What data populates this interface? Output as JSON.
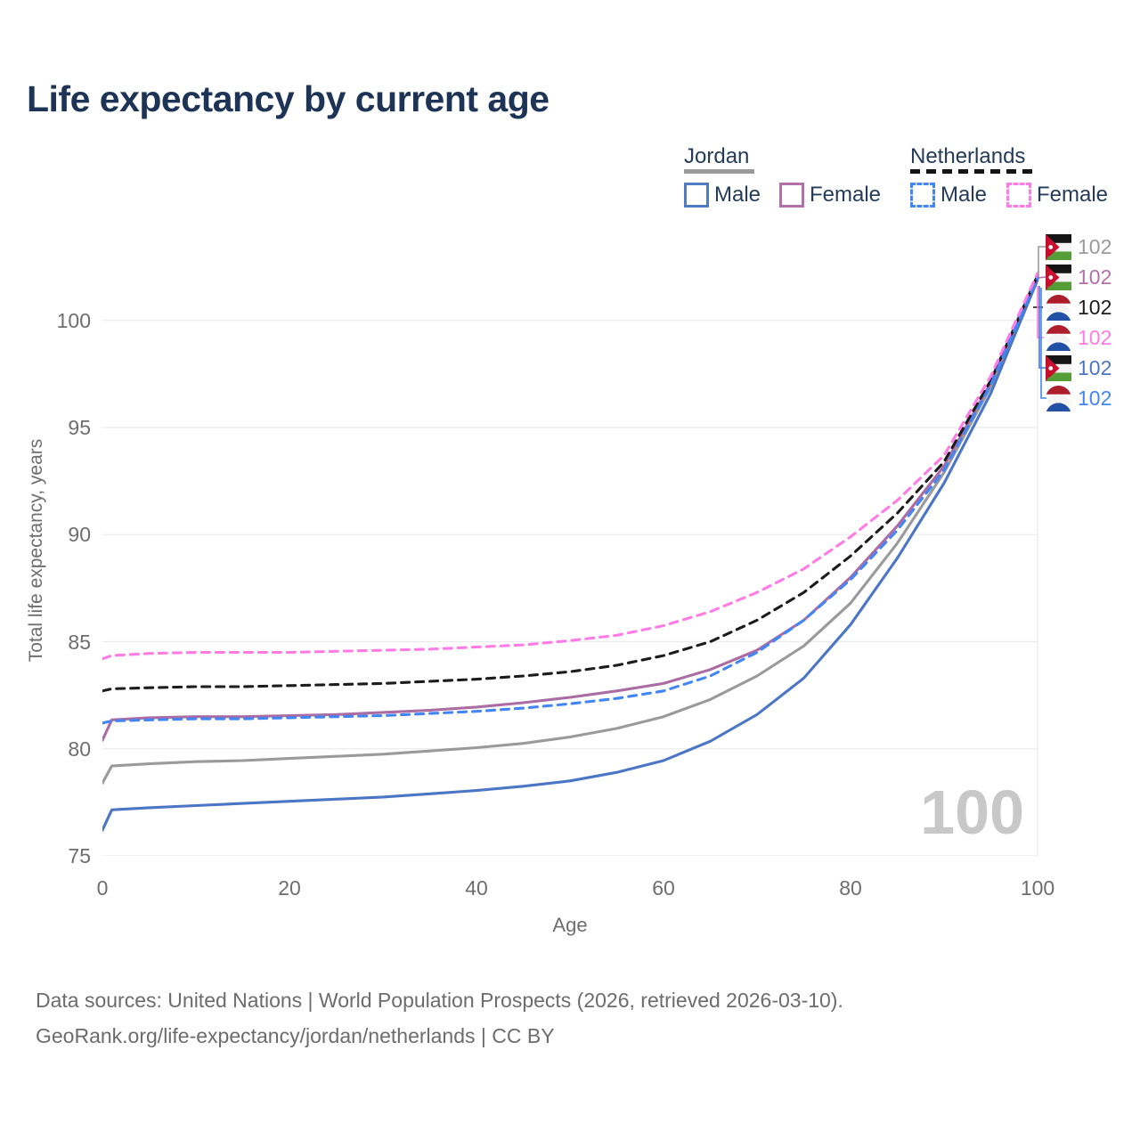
{
  "title": "Life expectancy by current age",
  "legend": {
    "groups": [
      {
        "label": "Jordan",
        "line_style": "solid",
        "underline_color": "#9a9a9a",
        "items": [
          {
            "label": "Male",
            "color": "#4f7ac4",
            "dashed": false
          },
          {
            "label": "Female",
            "color": "#b36fab",
            "dashed": false
          }
        ]
      },
      {
        "label": "Netherlands",
        "line_style": "dashed",
        "underline_color": "#141414",
        "items": [
          {
            "label": "Male",
            "color": "#4285f4",
            "dashed": true
          },
          {
            "label": "Female",
            "color": "#ff7be5",
            "dashed": true
          }
        ]
      }
    ]
  },
  "axes": {
    "x_label": "Age",
    "y_label": "Total life expectancy, years"
  },
  "watermark_age": "100",
  "end_labels": [
    {
      "series": "Jordan — total",
      "flag": "jordan",
      "value": "102",
      "color": "#9a9a9a"
    },
    {
      "series": "Jordan — female",
      "flag": "jordan",
      "value": "102",
      "color": "#b36fab"
    },
    {
      "series": "Netherlands — total",
      "flag": "netherlands",
      "value": "102",
      "color": "#1c1c1c"
    },
    {
      "series": "Netherlands — female",
      "flag": "netherlands",
      "value": "102",
      "color": "#ff7be5"
    },
    {
      "series": "Jordan — male",
      "flag": "jordan",
      "value": "102",
      "color": "#4b76c5"
    },
    {
      "series": "Netherlands — male",
      "flag": "netherlands",
      "value": "102",
      "color": "#4285f4"
    }
  ],
  "footer": {
    "line1": "Data sources: United Nations | World Population Prospects (2026, retrieved 2026-03-10).",
    "line2": "GeoRank.org/life-expectancy/jordan/netherlands | CC BY"
  },
  "chart_data": {
    "type": "line",
    "title": "Life expectancy by current age",
    "xlabel": "Age",
    "ylabel": "Total life expectancy, years",
    "xlim": [
      0,
      100
    ],
    "ylim": [
      75,
      102.5
    ],
    "xticks": [
      0,
      20,
      40,
      60,
      80,
      100
    ],
    "yticks": [
      75,
      80,
      85,
      90,
      95,
      100
    ],
    "grid": "horizontal",
    "legend_position": "top-right",
    "x": [
      0,
      1,
      5,
      10,
      15,
      20,
      25,
      30,
      35,
      40,
      45,
      50,
      55,
      60,
      65,
      70,
      75,
      80,
      85,
      90,
      95,
      100
    ],
    "series": [
      {
        "name": "Jordan total",
        "country": "Jordan",
        "sex": "both",
        "color": "#9a9a9a",
        "dashed": false,
        "values": [
          78.4,
          79.2,
          79.3,
          79.4,
          79.45,
          79.55,
          79.65,
          79.75,
          79.9,
          80.05,
          80.25,
          80.55,
          80.95,
          81.5,
          82.3,
          83.4,
          84.8,
          86.8,
          89.6,
          92.9,
          96.9,
          102.0
        ]
      },
      {
        "name": "Jordan male",
        "country": "Jordan",
        "sex": "male",
        "color": "#4b76c5",
        "dashed": false,
        "values": [
          76.2,
          77.15,
          77.25,
          77.35,
          77.45,
          77.55,
          77.65,
          77.75,
          77.9,
          78.05,
          78.25,
          78.5,
          78.9,
          79.45,
          80.35,
          81.6,
          83.3,
          85.8,
          88.9,
          92.4,
          96.6,
          101.9
        ]
      },
      {
        "name": "Jordan female",
        "country": "Jordan",
        "sex": "female",
        "color": "#ab6ca4",
        "dashed": false,
        "values": [
          80.4,
          81.35,
          81.45,
          81.5,
          81.5,
          81.55,
          81.6,
          81.7,
          81.8,
          81.95,
          82.15,
          82.4,
          82.7,
          83.05,
          83.7,
          84.6,
          86.0,
          88.0,
          90.4,
          93.2,
          97.1,
          102.1
        ]
      },
      {
        "name": "Netherlands total",
        "country": "Netherlands",
        "sex": "both",
        "color": "#1c1c1c",
        "dashed": true,
        "values": [
          82.7,
          82.8,
          82.85,
          82.9,
          82.9,
          82.95,
          83.0,
          83.05,
          83.15,
          83.25,
          83.4,
          83.6,
          83.9,
          84.35,
          85.0,
          86.0,
          87.3,
          89.0,
          91.0,
          93.4,
          97.2,
          102.1
        ]
      },
      {
        "name": "Netherlands male",
        "country": "Netherlands",
        "sex": "male",
        "color": "#4285f4",
        "dashed": true,
        "values": [
          81.2,
          81.3,
          81.35,
          81.4,
          81.4,
          81.45,
          81.5,
          81.55,
          81.65,
          81.75,
          81.9,
          82.1,
          82.35,
          82.7,
          83.4,
          84.5,
          86.0,
          87.9,
          90.2,
          93.0,
          97.0,
          102.0
        ]
      },
      {
        "name": "Netherlands female",
        "country": "Netherlands",
        "sex": "female",
        "color": "#ff7be5",
        "dashed": true,
        "values": [
          84.2,
          84.35,
          84.45,
          84.5,
          84.5,
          84.5,
          84.55,
          84.6,
          84.65,
          84.75,
          84.85,
          85.05,
          85.3,
          85.75,
          86.4,
          87.3,
          88.4,
          89.9,
          91.6,
          93.7,
          97.4,
          102.2
        ]
      }
    ],
    "end_value_label": "102",
    "age_counter": "100"
  }
}
